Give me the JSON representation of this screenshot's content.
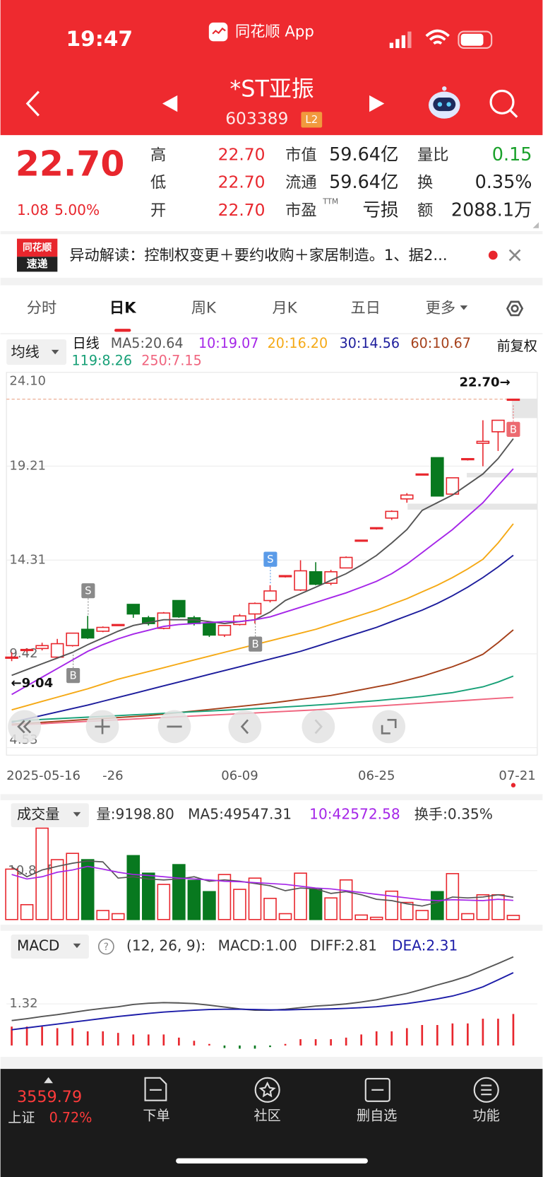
{
  "status_bar": {
    "time": "19:47",
    "app": "同花顺 App"
  },
  "header": {
    "title": "*ST亚振",
    "code": "603389",
    "badge": "L2"
  },
  "quote": {
    "price": "22.70",
    "change": "1.08",
    "change_pct": "5.00%",
    "fields": [
      {
        "label": "高",
        "value": "22.70"
      },
      {
        "label": "低",
        "value": "22.70"
      },
      {
        "label": "开",
        "value": "22.70"
      },
      {
        "label": "市值",
        "value": "59.64亿"
      },
      {
        "label": "流通",
        "value": "59.64亿"
      },
      {
        "label": "市盈",
        "note": "TTM",
        "value": "亏损"
      },
      {
        "label": "量比",
        "value": "0.15"
      },
      {
        "label": "换",
        "value": "0.35%"
      },
      {
        "label": "额",
        "value": "2088.1万"
      }
    ]
  },
  "news": {
    "badge_top": "同花顺",
    "badge_bottom": "速递",
    "text": "异动解读：控制权变更＋要约收购＋家居制造。1、据2..."
  },
  "tabs": [
    "分时",
    "日K",
    "周K",
    "月K",
    "五日",
    "更多"
  ],
  "kline": {
    "type": "candlestick",
    "indicator": "均线",
    "period": "日线",
    "adjust": "前复权",
    "ylim": [
      4.53,
      24.1
    ],
    "yticks": [
      {
        "value": 24.1,
        "label": "24.10"
      },
      19.21,
      14.31,
      9.42,
      4.53
    ],
    "up_color": "#e8262d",
    "down_color": "#08791f",
    "open": [
      9.2,
      9.6,
      9.7,
      9.25,
      9.85,
      10.7,
      10.6,
      10.9,
      12.0,
      11.3,
      10.75,
      12.2,
      11.3,
      11.0,
      10.4,
      10.95,
      11.5,
      12.2,
      13.45,
      12.75,
      13.7,
      13.1,
      13.9,
      15.3,
      15.95,
      16.5,
      17.5,
      18.75,
      19.65,
      17.75,
      19.55,
      20.4,
      21.0,
      22.7
    ],
    "high": [
      9.5,
      9.7,
      10.0,
      10.2,
      10.5,
      11.4,
      10.85,
      10.95,
      12.0,
      11.4,
      11.6,
      12.2,
      11.4,
      11.0,
      10.9,
      11.5,
      12.1,
      13.0,
      13.5,
      14.3,
      14.2,
      13.8,
      14.5,
      15.35,
      16.0,
      16.9,
      17.8,
      18.8,
      19.65,
      18.6,
      19.6,
      21.6,
      21.6,
      22.7
    ],
    "low": [
      9.04,
      9.5,
      9.6,
      9.2,
      9.8,
      10.2,
      10.55,
      10.9,
      11.3,
      10.9,
      10.7,
      11.3,
      10.9,
      10.3,
      10.3,
      10.9,
      11.0,
      12.1,
      13.4,
      12.7,
      13.0,
      13.0,
      13.9,
      15.3,
      15.9,
      16.4,
      17.3,
      18.75,
      17.65,
      17.7,
      19.5,
      19.2,
      20.0,
      22.7
    ],
    "close": [
      9.25,
      9.65,
      9.85,
      9.95,
      10.5,
      10.25,
      10.8,
      10.95,
      11.5,
      11.0,
      11.55,
      11.35,
      11.0,
      10.4,
      10.9,
      11.4,
      12.05,
      12.7,
      13.5,
      13.75,
      13.05,
      13.7,
      14.45,
      15.35,
      16.0,
      16.85,
      17.7,
      18.8,
      17.65,
      18.6,
      19.6,
      20.5,
      21.6,
      22.7
    ],
    "ma": [
      {
        "label": "MA5:20.64",
        "color": "#555555",
        "values": [
          8.3,
          8.6,
          8.9,
          9.2,
          9.5,
          9.9,
          10.25,
          10.6,
          10.9,
          11.05,
          11.2,
          11.2,
          11.2,
          11.1,
          11.0,
          11.1,
          11.2,
          11.6,
          12.2,
          12.55,
          12.9,
          13.25,
          13.6,
          14.05,
          14.55,
          15.2,
          15.9,
          16.9,
          17.3,
          17.7,
          18.25,
          18.8,
          19.6,
          20.64
        ]
      },
      {
        "label": "10:19.07",
        "color": "#a526e8",
        "values": [
          7.3,
          7.75,
          8.2,
          8.65,
          9.1,
          9.55,
          9.9,
          10.2,
          10.45,
          10.65,
          10.85,
          10.95,
          11.0,
          11.05,
          11.1,
          11.1,
          11.2,
          11.35,
          11.6,
          11.85,
          12.1,
          12.35,
          12.6,
          12.9,
          13.2,
          13.6,
          14.1,
          14.7,
          15.3,
          15.9,
          16.6,
          17.3,
          18.2,
          19.07
        ]
      },
      {
        "label": "20:16.20",
        "color": "#f5a915",
        "values": [
          6.5,
          6.72,
          6.94,
          7.16,
          7.38,
          7.6,
          7.85,
          8.1,
          8.3,
          8.5,
          8.7,
          8.9,
          9.1,
          9.3,
          9.5,
          9.7,
          9.9,
          10.1,
          10.3,
          10.5,
          10.7,
          10.95,
          11.2,
          11.45,
          11.7,
          12.0,
          12.3,
          12.65,
          13.0,
          13.4,
          13.85,
          14.35,
          15.2,
          16.2
        ]
      },
      {
        "label": "30:14.56",
        "color": "#1c1c9c",
        "values": [
          5.85,
          6.03,
          6.21,
          6.39,
          6.57,
          6.75,
          6.95,
          7.15,
          7.35,
          7.55,
          7.75,
          7.95,
          8.15,
          8.35,
          8.55,
          8.75,
          8.95,
          9.15,
          9.35,
          9.55,
          9.8,
          10.05,
          10.3,
          10.55,
          10.8,
          11.1,
          11.4,
          11.7,
          12.05,
          12.45,
          12.9,
          13.4,
          13.95,
          14.56
        ]
      },
      {
        "label": "60:10.67",
        "color": "#a5401a",
        "values": [
          5.75,
          5.8,
          5.85,
          5.9,
          5.95,
          6.0,
          6.05,
          6.1,
          6.15,
          6.2,
          6.28,
          6.36,
          6.44,
          6.52,
          6.6,
          6.68,
          6.76,
          6.85,
          6.95,
          7.05,
          7.15,
          7.25,
          7.4,
          7.55,
          7.7,
          7.85,
          8.05,
          8.25,
          8.5,
          8.75,
          9.05,
          9.4,
          10.0,
          10.67
        ]
      },
      {
        "label": "119:8.26",
        "color": "#17a077",
        "values": [
          5.9,
          5.95,
          6.0,
          6.04,
          6.08,
          6.12,
          6.16,
          6.2,
          6.24,
          6.28,
          6.32,
          6.36,
          6.4,
          6.44,
          6.48,
          6.52,
          6.56,
          6.6,
          6.65,
          6.7,
          6.75,
          6.8,
          6.86,
          6.92,
          6.98,
          7.05,
          7.12,
          7.2,
          7.3,
          7.4,
          7.55,
          7.7,
          7.95,
          8.26
        ]
      },
      {
        "label": "250:7.15",
        "color": "#f0647e",
        "values": [
          5.7,
          5.74,
          5.78,
          5.82,
          5.86,
          5.9,
          5.94,
          5.98,
          6.02,
          6.06,
          6.1,
          6.14,
          6.18,
          6.22,
          6.26,
          6.3,
          6.34,
          6.38,
          6.42,
          6.46,
          6.5,
          6.55,
          6.6,
          6.65,
          6.7,
          6.75,
          6.8,
          6.85,
          6.9,
          6.95,
          7.0,
          7.05,
          7.1,
          7.15
        ]
      }
    ],
    "last_price": {
      "value": 22.7,
      "label": "22.70→"
    },
    "low_marker": {
      "value": 9.04,
      "label": "←9.04"
    },
    "signals": [
      "S",
      "B",
      "S",
      "B",
      "B"
    ],
    "x_labels": [
      "2025-05-16",
      "-26",
      "06-09",
      "06-25",
      "07-21"
    ]
  },
  "volume": {
    "type": "bar",
    "indicator": "成交量",
    "label": "量:9198.80",
    "turnover": "换手:0.35%",
    "ylim": [
      0,
      216800
    ],
    "yticks": [
      {
        "value": 108400,
        "label": "10.84万"
      }
    ],
    "values": [
      112000,
      33000,
      203000,
      133000,
      147000,
      133000,
      20000,
      13000,
      142000,
      103000,
      78000,
      122000,
      87000,
      62000,
      100000,
      67000,
      92000,
      47000,
      13000,
      103000,
      67000,
      48000,
      88000,
      10000,
      5000,
      63000,
      38000,
      20000,
      62000,
      102000,
      13000,
      55000,
      55000,
      9198.8
    ],
    "ma": [
      {
        "label": "MA5:49547.31",
        "color": "#555555",
        "values": [
          117000,
          95000,
          110000,
          118000,
          125000,
          130000,
          128000,
          92000,
          95000,
          90000,
          88000,
          90000,
          95000,
          85000,
          88000,
          85000,
          80000,
          75000,
          64000,
          70000,
          68000,
          58000,
          62000,
          55000,
          45000,
          42000,
          35000,
          30000,
          38000,
          50000,
          48000,
          50000,
          55000,
          49547.31
        ]
      },
      {
        "label": "10:42572.58",
        "color": "#a526e8",
        "values": [
          100000,
          90000,
          95000,
          105000,
          110000,
          118000,
          112000,
          105000,
          100000,
          98000,
          95000,
          92000,
          90000,
          88000,
          85000,
          84000,
          82000,
          80000,
          78000,
          74000,
          70000,
          68000,
          64000,
          60000,
          56000,
          52000,
          48000,
          44000,
          42000,
          44000,
          43000,
          42000,
          45000,
          42572.58
        ]
      }
    ]
  },
  "macd": {
    "type": "macd",
    "indicator": "MACD",
    "help": "?",
    "params": "(12, 26, 9):",
    "ylim": [
      -0.29,
      3.4
    ],
    "yticks": [
      1.32
    ],
    "hist": {
      "label": "MACD:1.00",
      "values": [
        0.6,
        0.6,
        0.6,
        0.55,
        0.55,
        0.45,
        0.45,
        0.4,
        0.35,
        0.35,
        0.35,
        0.25,
        0.15,
        0.05,
        -0.08,
        -0.1,
        -0.1,
        -0.05,
        0.05,
        0.2,
        0.2,
        0.2,
        0.25,
        0.35,
        0.45,
        0.45,
        0.55,
        0.65,
        0.65,
        0.7,
        0.7,
        0.85,
        0.85,
        1.0
      ]
    },
    "diff": {
      "label": "DIFF:2.81",
      "color": "#555555",
      "values": [
        0.79,
        0.85,
        0.92,
        0.98,
        1.05,
        1.12,
        1.18,
        1.23,
        1.3,
        1.34,
        1.36,
        1.35,
        1.33,
        1.28,
        1.22,
        1.16,
        1.12,
        1.12,
        1.15,
        1.2,
        1.25,
        1.28,
        1.32,
        1.38,
        1.45,
        1.55,
        1.65,
        1.78,
        1.92,
        2.05,
        2.2,
        2.4,
        2.6,
        2.81
      ]
    },
    "dea": {
      "label": "DEA:2.31",
      "color": "#1c1ca8",
      "values": [
        0.5,
        0.56,
        0.62,
        0.68,
        0.74,
        0.8,
        0.86,
        0.92,
        0.97,
        1.02,
        1.06,
        1.09,
        1.12,
        1.14,
        1.15,
        1.15,
        1.14,
        1.13,
        1.13,
        1.14,
        1.15,
        1.16,
        1.18,
        1.2,
        1.23,
        1.28,
        1.33,
        1.4,
        1.48,
        1.57,
        1.7,
        1.86,
        2.08,
        2.31
      ]
    }
  },
  "bottom_bar": {
    "index_value": "3559.79",
    "index_name": "上证",
    "index_pct": "0.72%",
    "tabs": [
      "下单",
      "社区",
      "删自选",
      "功能"
    ]
  }
}
